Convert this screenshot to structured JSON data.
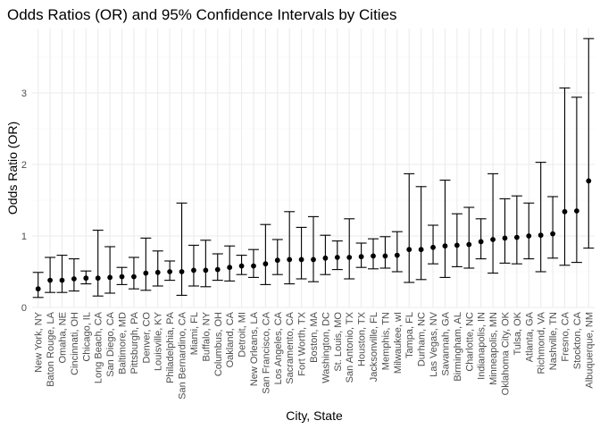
{
  "chart_data": {
    "type": "scatter",
    "title": "Odds Ratios (OR) and 95% Confidence Intervals by Cities",
    "xlabel": "City, State",
    "ylabel": "Odds Ratio (OR)",
    "ylim": [
      0,
      3.9
    ],
    "yticks": [
      0,
      1,
      2,
      3
    ],
    "grid": true,
    "categories": [
      "New York, NY",
      "Baton Rouge, LA",
      "Omaha, NE",
      "Cincinnati, OH",
      "Chicago, IL",
      "Long Beach, CA",
      "San Diego, CA",
      "Baltimore, MD",
      "Pittsburgh, PA",
      "Denver, CO",
      "Louisville, KY",
      "Philadelphia, PA",
      "San Bernardino, CA",
      "Miami, FL",
      "Buffalo, NY",
      "Columbus, OH",
      "Oakland, CA",
      "Detroit, MI",
      "New Orleans, LA",
      "San Francisco, CA",
      "Los Angeles, CA",
      "Sacramento, CA",
      "Fort Worth, TX",
      "Boston, MA",
      "Washington, DC",
      "St. Louis, MO",
      "San Antonio, TX",
      "Houston, TX",
      "Jacksonville, FL",
      "Memphis, TN",
      "Milwaukee, wI",
      "Tampa, FL",
      "Durham, NC",
      "Las Vegas, NV",
      "Savannah, GA",
      "Birmingham, AL",
      "Charlotte, NC",
      "Indianapolis, IN",
      "Minneapolis, MN",
      "Oklahoma City, OK",
      "Tulsa, OK",
      "Atlanta, GA",
      "Richmond, VA",
      "Nashville, TN",
      "Fresno, CA",
      "Stockton, CA",
      "Albuquerque, NM"
    ],
    "estimate": [
      0.26,
      0.38,
      0.38,
      0.4,
      0.41,
      0.41,
      0.42,
      0.43,
      0.43,
      0.48,
      0.49,
      0.5,
      0.5,
      0.52,
      0.52,
      0.53,
      0.56,
      0.58,
      0.58,
      0.61,
      0.66,
      0.67,
      0.67,
      0.67,
      0.69,
      0.7,
      0.7,
      0.71,
      0.72,
      0.72,
      0.73,
      0.81,
      0.81,
      0.84,
      0.86,
      0.87,
      0.88,
      0.92,
      0.95,
      0.97,
      0.98,
      1.0,
      1.01,
      1.03,
      1.34,
      1.35,
      1.77
    ],
    "lower": [
      0.14,
      0.21,
      0.21,
      0.23,
      0.33,
      0.16,
      0.2,
      0.32,
      0.26,
      0.24,
      0.3,
      0.38,
      0.17,
      0.3,
      0.29,
      0.38,
      0.37,
      0.46,
      0.42,
      0.32,
      0.46,
      0.33,
      0.4,
      0.36,
      0.46,
      0.53,
      0.4,
      0.56,
      0.54,
      0.55,
      0.5,
      0.35,
      0.39,
      0.61,
      0.42,
      0.57,
      0.55,
      0.68,
      0.48,
      0.62,
      0.61,
      0.68,
      0.5,
      0.69,
      0.59,
      0.63,
      0.83
    ],
    "upper": [
      0.49,
      0.7,
      0.73,
      0.68,
      0.51,
      1.08,
      0.85,
      0.56,
      0.7,
      0.97,
      0.79,
      0.65,
      1.46,
      0.87,
      0.94,
      0.75,
      0.86,
      0.73,
      0.81,
      1.16,
      0.95,
      1.34,
      1.12,
      1.27,
      1.01,
      0.93,
      1.24,
      0.9,
      0.96,
      0.99,
      1.06,
      1.87,
      1.69,
      1.15,
      1.78,
      1.31,
      1.4,
      1.24,
      1.87,
      1.52,
      1.56,
      1.46,
      2.03,
      1.55,
      3.07,
      2.94,
      3.76
    ]
  }
}
